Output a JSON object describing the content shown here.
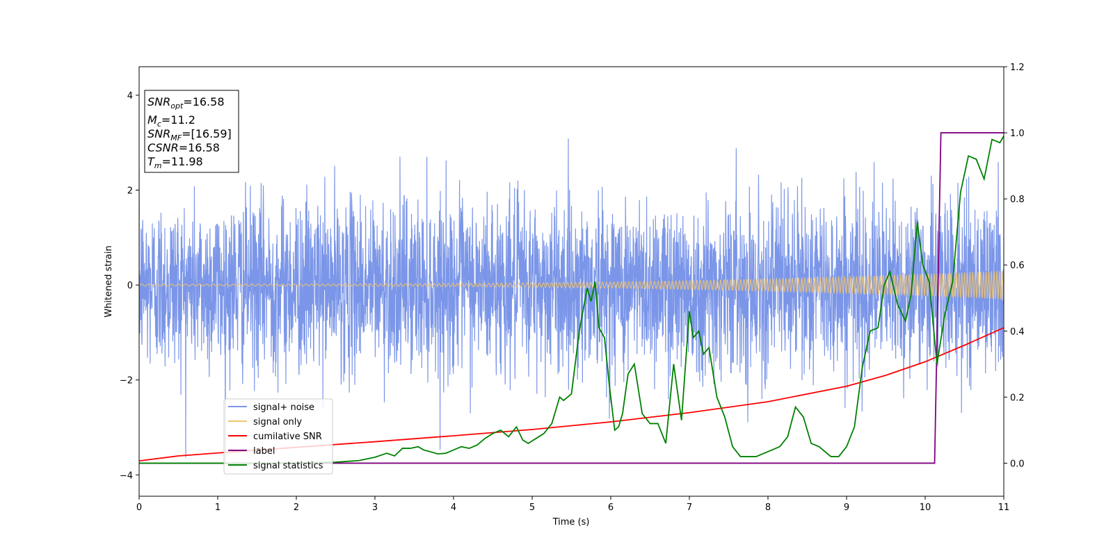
{
  "chart_data": {
    "type": "line",
    "xlabel": "Time (s)",
    "ylabel": "Whitened strain",
    "xlim": [
      0,
      11
    ],
    "ylim_left": [
      -4.45,
      4.6
    ],
    "ylim_right": [
      -0.1,
      1.2
    ],
    "x_ticks": [
      "0",
      "1",
      "2",
      "3",
      "4",
      "5",
      "6",
      "7",
      "8",
      "9",
      "10",
      "11"
    ],
    "y_ticks_left": [
      "−4",
      "−2",
      "0",
      "2",
      "4"
    ],
    "y_ticks_right": [
      "0.0",
      "0.2",
      "0.4",
      "0.6",
      "0.8",
      "1.0",
      "1.2"
    ],
    "legend_position": "lower-left",
    "info_box": {
      "snr_opt_label": "SNR",
      "snr_opt_sub": "opt",
      "snr_opt_value": "=16.58",
      "mc_label": "M",
      "mc_sub": "c",
      "mc_value": "=11.2",
      "snr_mf_label": "SNR",
      "snr_mf_sub": "MF",
      "snr_mf_value": "=[16.59]",
      "csnr_label": "CSNR",
      "csnr_value": "=16.58",
      "tm_label": "T",
      "tm_sub": "m",
      "tm_value": "=11.98"
    },
    "series": [
      {
        "name": "signal+ noise",
        "color": "#7b96e8",
        "axis": "left",
        "description_values": "gaussian noise, std ~0.9, range approx -4.0 to 3.6"
      },
      {
        "name": "signal only",
        "color": "#f2c46d",
        "axis": "left",
        "chirp": {
          "amp_start": 0.02,
          "amp_end": 0.3,
          "t_end": 11
        }
      },
      {
        "name": "cumilative SNR",
        "color": "#ff0000",
        "axis": "right",
        "x": [
          0,
          0.5,
          1,
          2,
          3,
          4,
          5,
          6,
          7,
          8,
          9,
          9.5,
          10,
          10.5,
          11
        ],
        "y": [
          0.007,
          0.022,
          0.031,
          0.048,
          0.065,
          0.083,
          0.102,
          0.125,
          0.153,
          0.186,
          0.233,
          0.266,
          0.307,
          0.357,
          0.41
        ]
      },
      {
        "name": "label",
        "color": "#800080",
        "axis": "right",
        "x": [
          0,
          10.12,
          10.2,
          11
        ],
        "y": [
          0,
          0,
          1,
          1
        ]
      },
      {
        "name": "signal statistics",
        "color": "#008000",
        "axis": "right",
        "x": [
          0,
          0.5,
          1,
          1.5,
          2,
          2.5,
          2.8,
          3.0,
          3.15,
          3.25,
          3.35,
          3.45,
          3.55,
          3.62,
          3.7,
          3.8,
          3.9,
          4.0,
          4.1,
          4.2,
          4.3,
          4.4,
          4.5,
          4.6,
          4.7,
          4.8,
          4.88,
          4.95,
          5.05,
          5.15,
          5.25,
          5.35,
          5.4,
          5.5,
          5.6,
          5.7,
          5.75,
          5.8,
          5.85,
          5.92,
          5.98,
          6.05,
          6.1,
          6.15,
          6.22,
          6.3,
          6.4,
          6.5,
          6.6,
          6.7,
          6.8,
          6.9,
          7.0,
          7.05,
          7.12,
          7.18,
          7.25,
          7.35,
          7.45,
          7.55,
          7.65,
          7.75,
          7.85,
          7.95,
          8.05,
          8.15,
          8.25,
          8.35,
          8.45,
          8.55,
          8.65,
          8.8,
          8.9,
          9.0,
          9.1,
          9.2,
          9.3,
          9.4,
          9.48,
          9.55,
          9.65,
          9.75,
          9.82,
          9.9,
          9.97,
          10.05,
          10.15,
          10.25,
          10.35,
          10.45,
          10.55,
          10.65,
          10.75,
          10.85,
          10.95,
          11.0
        ],
        "y": [
          0,
          0,
          0,
          0,
          0.001,
          0.003,
          0.008,
          0.018,
          0.03,
          0.022,
          0.045,
          0.045,
          0.05,
          0.04,
          0.035,
          0.028,
          0.03,
          0.04,
          0.05,
          0.045,
          0.055,
          0.075,
          0.09,
          0.1,
          0.08,
          0.11,
          0.07,
          0.06,
          0.075,
          0.09,
          0.12,
          0.2,
          0.19,
          0.21,
          0.4,
          0.53,
          0.49,
          0.55,
          0.41,
          0.38,
          0.24,
          0.1,
          0.11,
          0.15,
          0.27,
          0.3,
          0.15,
          0.12,
          0.12,
          0.06,
          0.3,
          0.13,
          0.46,
          0.38,
          0.4,
          0.33,
          0.35,
          0.2,
          0.14,
          0.05,
          0.02,
          0.02,
          0.02,
          0.03,
          0.04,
          0.05,
          0.08,
          0.17,
          0.14,
          0.06,
          0.05,
          0.02,
          0.02,
          0.05,
          0.11,
          0.29,
          0.4,
          0.41,
          0.54,
          0.58,
          0.48,
          0.43,
          0.51,
          0.73,
          0.6,
          0.55,
          0.3,
          0.45,
          0.55,
          0.82,
          0.93,
          0.92,
          0.86,
          0.98,
          0.97,
          0.99
        ]
      }
    ]
  }
}
